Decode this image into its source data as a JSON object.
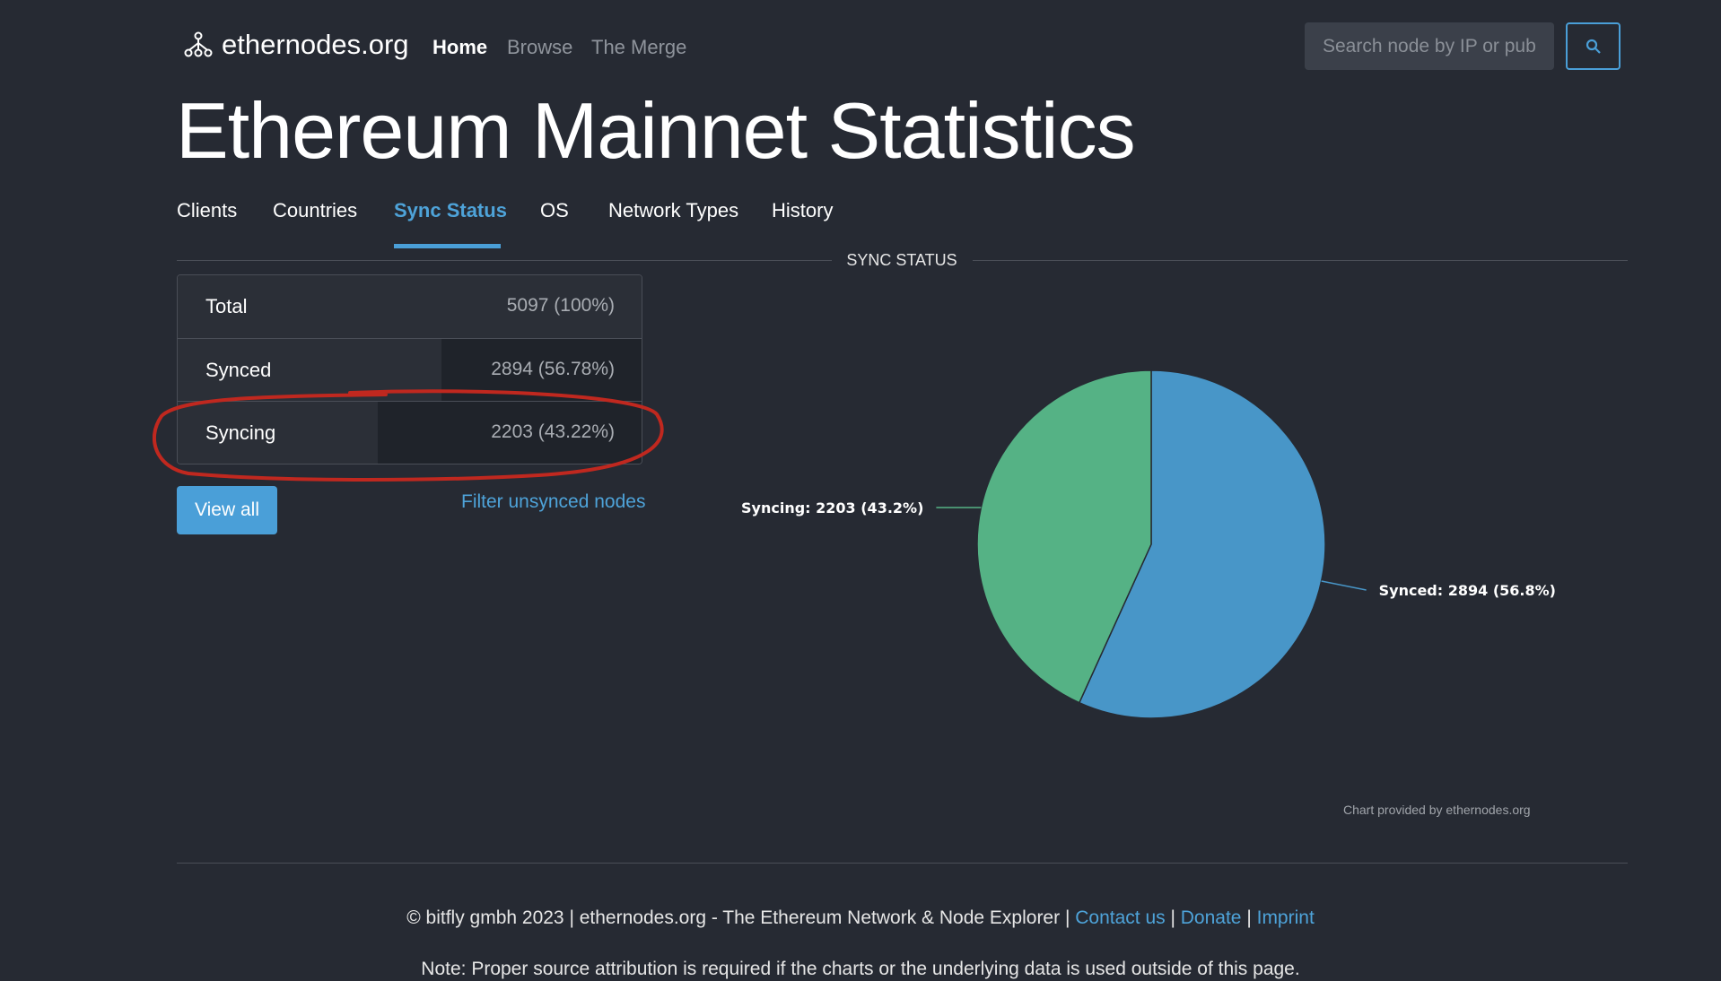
{
  "nav": {
    "brand": "ethernodes.org",
    "links": [
      "Home",
      "Browse",
      "The Merge"
    ],
    "search_placeholder": "Search node by IP or pubkey"
  },
  "page_title": "Ethereum Mainnet Statistics",
  "tabs": [
    "Clients",
    "Countries",
    "Sync Status",
    "OS",
    "Network Types",
    "History"
  ],
  "active_tab": "Sync Status",
  "section_title": "SYNC STATUS",
  "stats": [
    {
      "label": "Total",
      "value": "5097 (100%)",
      "fraction": 1.0
    },
    {
      "label": "Synced",
      "value": "2894 (56.78%)",
      "fraction": 0.5678
    },
    {
      "label": "Syncing",
      "value": "2203 (43.22%)",
      "fraction": 0.4322
    }
  ],
  "buttons": {
    "view_all": "View all",
    "filter_link": "Filter unsynced nodes"
  },
  "chart_data": {
    "type": "pie",
    "slices": [
      {
        "name": "Synced",
        "value": 2894,
        "label": "Synced: 2894 (56.8%)",
        "color": "#4896c8"
      },
      {
        "name": "Syncing",
        "value": 2203,
        "label": "Syncing: 2203 (43.2%)",
        "color": "#55b285"
      }
    ],
    "credit": "Chart provided by ethernodes.org"
  },
  "footer": {
    "copyright": "© bitfly gmbh 2023 | ethernodes.org - The Ethereum Network & Node Explorer |",
    "contact": "Contact us",
    "donate": "Donate",
    "imprint": "Imprint",
    "note": "Note: Proper source attribution is required if the charts or the underlying data is used outside of this page."
  },
  "colors": {
    "accent": "#4a9fd8",
    "background": "#262a33",
    "annotation": "#c0281f"
  }
}
